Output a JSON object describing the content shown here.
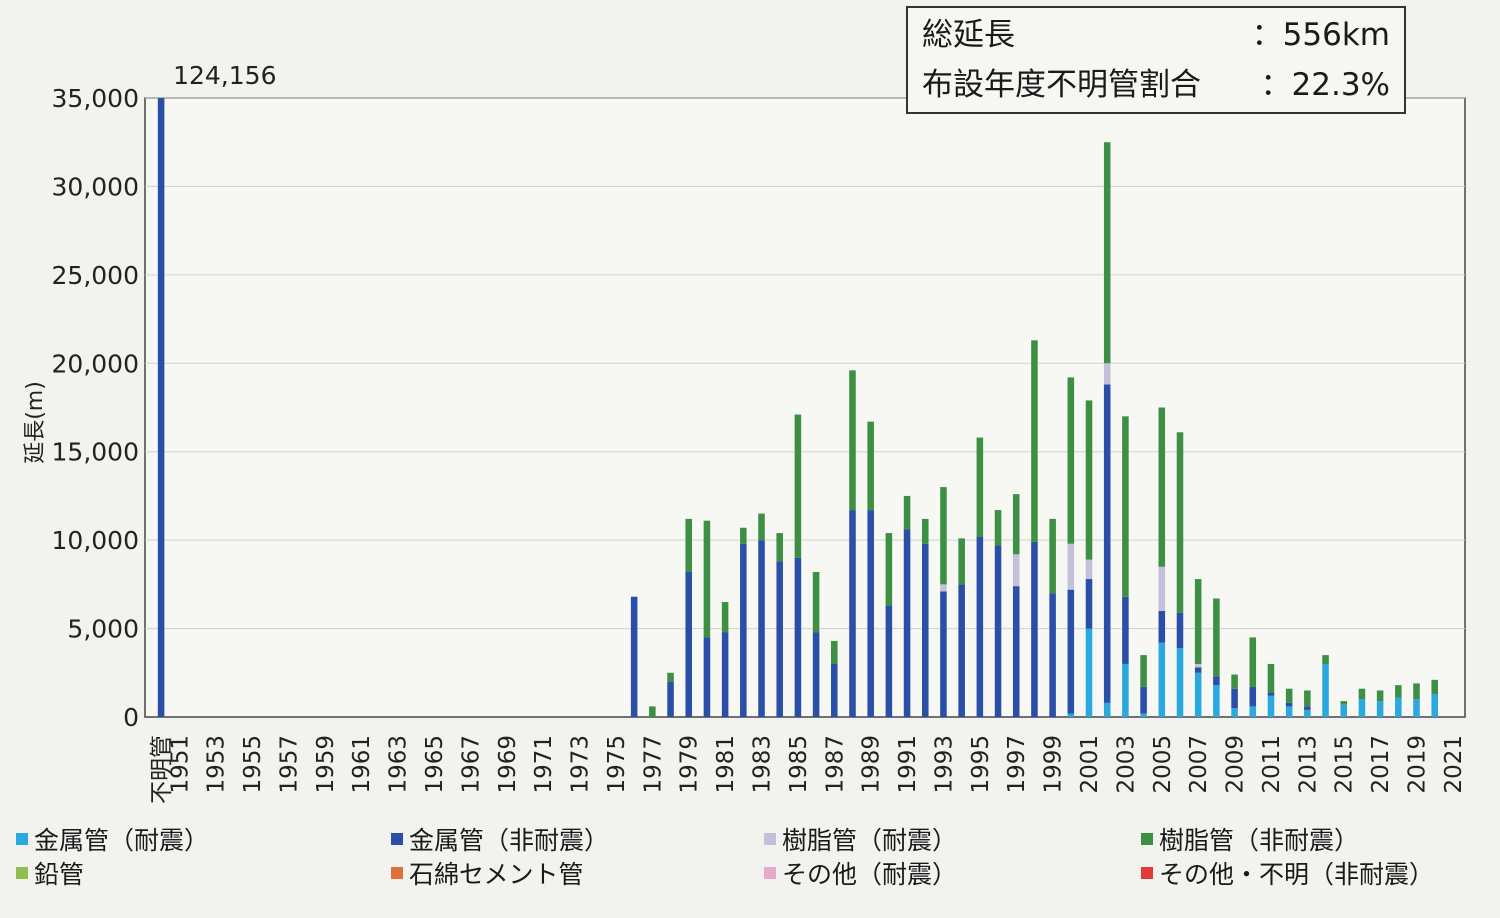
{
  "summary": {
    "total_label": "総延長",
    "total_value": "：556km",
    "unknown_label": "布設年度不明管割合",
    "unknown_value": "：22.3%"
  },
  "chart_data": {
    "type": "bar",
    "stacked": true,
    "title": "",
    "ylabel": "延長(m)",
    "xlabel": "",
    "ylim": [
      0,
      35000
    ],
    "yticks": [
      0,
      5000,
      10000,
      15000,
      20000,
      25000,
      30000,
      35000
    ],
    "ytick_labels": [
      "0",
      "5,000",
      "10,000",
      "15,000",
      "20,000",
      "25,000",
      "30,000",
      "35,000"
    ],
    "grid": true,
    "legend_position": "bottom",
    "categories": [
      "不明管",
      "1951",
      "1952",
      "1953",
      "1954",
      "1955",
      "1956",
      "1957",
      "1958",
      "1959",
      "1960",
      "1961",
      "1962",
      "1963",
      "1964",
      "1965",
      "1966",
      "1967",
      "1968",
      "1969",
      "1970",
      "1971",
      "1972",
      "1973",
      "1974",
      "1975",
      "1976",
      "1977",
      "1978",
      "1979",
      "1980",
      "1981",
      "1982",
      "1983",
      "1984",
      "1985",
      "1986",
      "1987",
      "1988",
      "1989",
      "1990",
      "1991",
      "1992",
      "1993",
      "1994",
      "1995",
      "1996",
      "1997",
      "1998",
      "1999",
      "2000",
      "2001",
      "2002",
      "2003",
      "2004",
      "2005",
      "2006",
      "2007",
      "2008",
      "2009",
      "2010",
      "2011",
      "2012",
      "2013",
      "2014",
      "2015",
      "2016",
      "2017",
      "2018",
      "2019",
      "2020",
      "2021"
    ],
    "tick_labels": [
      "不明管",
      "1951",
      "1953",
      "1955",
      "1957",
      "1959",
      "1961",
      "1963",
      "1965",
      "1967",
      "1969",
      "1971",
      "1973",
      "1975",
      "1977",
      "1979",
      "1981",
      "1983",
      "1985",
      "1987",
      "1989",
      "1991",
      "1993",
      "1995",
      "1997",
      "1999",
      "2001",
      "2003",
      "2005",
      "2007",
      "2009",
      "2011",
      "2013",
      "2015",
      "2017",
      "2019",
      "2021"
    ],
    "annotations": [
      {
        "category": "不明管",
        "text": "124,156"
      }
    ],
    "series": [
      {
        "name": "金属管（耐震）",
        "color": "#2aa9e0",
        "values": [
          0,
          0,
          0,
          0,
          0,
          0,
          0,
          0,
          0,
          0,
          0,
          0,
          0,
          0,
          0,
          0,
          0,
          0,
          0,
          0,
          0,
          0,
          0,
          0,
          0,
          0,
          0,
          0,
          0,
          0,
          0,
          0,
          0,
          0,
          0,
          0,
          0,
          0,
          0,
          0,
          0,
          0,
          0,
          0,
          0,
          0,
          0,
          0,
          0,
          0,
          200,
          5000,
          800,
          3000,
          200,
          4200,
          3900,
          2500,
          1800,
          500,
          600,
          1200,
          600,
          400,
          3000,
          700,
          1000,
          900,
          1100,
          1000,
          1300,
          0
        ]
      },
      {
        "name": "金属管（非耐震）",
        "color": "#2a4fa8",
        "values": [
          35000,
          0,
          0,
          0,
          0,
          0,
          0,
          0,
          0,
          0,
          0,
          0,
          0,
          0,
          0,
          0,
          0,
          0,
          0,
          0,
          0,
          0,
          0,
          0,
          0,
          0,
          6800,
          0,
          2000,
          8200,
          4500,
          4800,
          9800,
          10000,
          8800,
          9000,
          4800,
          3000,
          11700,
          11700,
          6300,
          10600,
          9800,
          7100,
          7500,
          10200,
          9700,
          7400,
          9900,
          7000,
          7000,
          2800,
          18000,
          3800,
          1500,
          1800,
          2000,
          300,
          500,
          1100,
          1100,
          200,
          200,
          200,
          0,
          0,
          0,
          0,
          0,
          0,
          0,
          0
        ]
      },
      {
        "name": "樹脂管（耐震）",
        "color": "#c4c0da",
        "values": [
          0,
          0,
          0,
          0,
          0,
          0,
          0,
          0,
          0,
          0,
          0,
          0,
          0,
          0,
          0,
          0,
          0,
          0,
          0,
          0,
          0,
          0,
          0,
          0,
          0,
          0,
          0,
          0,
          0,
          0,
          0,
          0,
          0,
          0,
          0,
          0,
          0,
          0,
          0,
          0,
          0,
          0,
          0,
          400,
          0,
          0,
          0,
          1800,
          0,
          0,
          2600,
          1100,
          1200,
          0,
          0,
          2500,
          0,
          200,
          0,
          0,
          0,
          0,
          0,
          0,
          0,
          0,
          0,
          0,
          0,
          0,
          0,
          0
        ]
      },
      {
        "name": "樹脂管（非耐震）",
        "color": "#3c8f43",
        "values": [
          0,
          0,
          0,
          0,
          0,
          0,
          0,
          0,
          0,
          0,
          0,
          0,
          0,
          0,
          0,
          0,
          0,
          0,
          0,
          0,
          0,
          0,
          0,
          0,
          0,
          0,
          0,
          600,
          500,
          3000,
          6600,
          1700,
          900,
          1500,
          1600,
          8100,
          3400,
          1300,
          7900,
          5000,
          4100,
          1900,
          1400,
          5500,
          2600,
          5600,
          2000,
          3400,
          11400,
          4200,
          9400,
          9000,
          12500,
          10200,
          1800,
          9000,
          10200,
          4800,
          4400,
          800,
          2800,
          1600,
          800,
          900,
          500,
          200,
          600,
          600,
          700,
          900,
          800,
          0
        ]
      },
      {
        "name": "鉛管",
        "color": "#8fbf4d",
        "values": [
          0,
          0,
          0,
          0,
          0,
          0,
          0,
          0,
          0,
          0,
          0,
          0,
          0,
          0,
          0,
          0,
          0,
          0,
          0,
          0,
          0,
          0,
          0,
          0,
          0,
          0,
          0,
          0,
          0,
          0,
          0,
          0,
          0,
          0,
          0,
          0,
          0,
          0,
          0,
          0,
          0,
          0,
          0,
          0,
          0,
          0,
          0,
          0,
          0,
          0,
          0,
          0,
          0,
          0,
          0,
          0,
          0,
          0,
          0,
          0,
          0,
          0,
          0,
          0,
          0,
          0,
          0,
          0,
          0,
          0,
          0,
          0
        ]
      },
      {
        "name": "石綿セメント管",
        "color": "#e0703a",
        "values": [
          0,
          0,
          0,
          0,
          0,
          0,
          0,
          0,
          0,
          0,
          0,
          0,
          0,
          0,
          0,
          0,
          0,
          0,
          0,
          0,
          0,
          0,
          0,
          0,
          0,
          0,
          0,
          0,
          0,
          0,
          0,
          0,
          0,
          0,
          0,
          0,
          0,
          0,
          0,
          0,
          0,
          0,
          0,
          0,
          0,
          0,
          0,
          0,
          0,
          0,
          0,
          0,
          0,
          0,
          0,
          0,
          0,
          0,
          0,
          0,
          0,
          0,
          0,
          0,
          0,
          0,
          0,
          0,
          0,
          0,
          0,
          0
        ]
      },
      {
        "name": "その他（耐震）",
        "color": "#e8aacb",
        "values": [
          0,
          0,
          0,
          0,
          0,
          0,
          0,
          0,
          0,
          0,
          0,
          0,
          0,
          0,
          0,
          0,
          0,
          0,
          0,
          0,
          0,
          0,
          0,
          0,
          0,
          0,
          0,
          0,
          0,
          0,
          0,
          0,
          0,
          0,
          0,
          0,
          0,
          0,
          0,
          0,
          0,
          0,
          0,
          0,
          0,
          0,
          0,
          0,
          0,
          0,
          0,
          0,
          0,
          0,
          0,
          0,
          0,
          0,
          0,
          0,
          0,
          0,
          0,
          0,
          0,
          0,
          0,
          0,
          0,
          0,
          0,
          0
        ]
      },
      {
        "name": "その他・不明（非耐震）",
        "color": "#e03a3a",
        "values": [
          0,
          0,
          0,
          0,
          0,
          0,
          0,
          0,
          0,
          0,
          0,
          0,
          0,
          0,
          0,
          0,
          0,
          0,
          0,
          0,
          0,
          0,
          0,
          0,
          0,
          0,
          0,
          0,
          0,
          0,
          0,
          0,
          0,
          0,
          0,
          0,
          0,
          0,
          0,
          0,
          0,
          0,
          0,
          0,
          0,
          0,
          0,
          0,
          0,
          0,
          0,
          0,
          0,
          0,
          0,
          0,
          0,
          0,
          0,
          0,
          0,
          0,
          0,
          0,
          0,
          0,
          0,
          0,
          0,
          0,
          0,
          0
        ]
      }
    ]
  }
}
